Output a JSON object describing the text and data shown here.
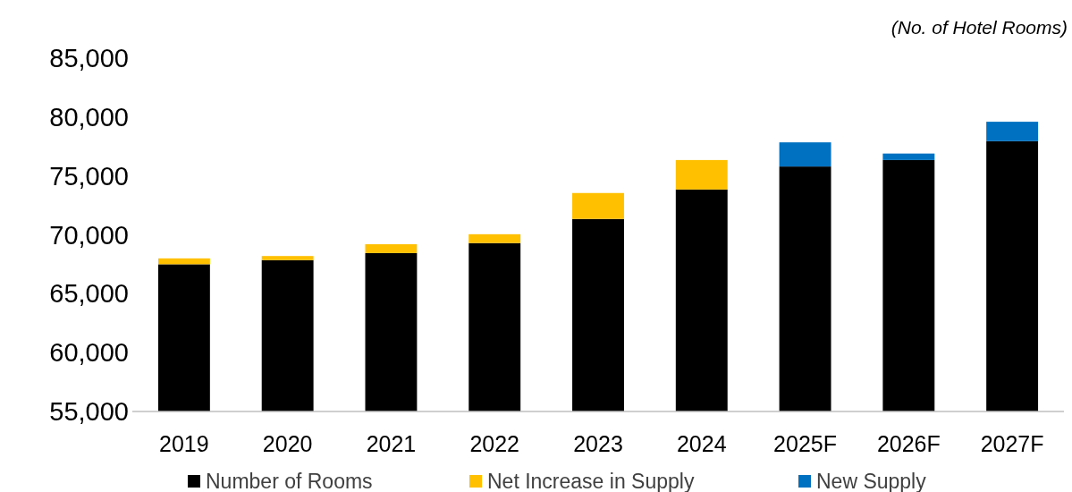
{
  "chart_data": {
    "type": "bar",
    "stacked": true,
    "categories": [
      "2019",
      "2020",
      "2021",
      "2022",
      "2023",
      "2024",
      "2025F",
      "2026F",
      "2027F"
    ],
    "series": [
      {
        "name": "Number of Rooms",
        "color": "#000000",
        "values": [
          67500,
          67850,
          68450,
          69300,
          71350,
          73850,
          75800,
          76350,
          77950
        ]
      },
      {
        "name": "Net Increase in Supply",
        "color": "#ffc000",
        "base": [
          67500,
          67850,
          68450,
          69300,
          71350,
          73850,
          null,
          null,
          null
        ],
        "values": [
          500,
          350,
          750,
          750,
          2200,
          2500,
          null,
          null,
          null
        ]
      },
      {
        "name": "New Supply",
        "color": "#0070c0",
        "base": [
          null,
          null,
          null,
          null,
          null,
          null,
          75800,
          76350,
          77950
        ],
        "values": [
          null,
          null,
          null,
          null,
          null,
          null,
          2050,
          550,
          1650
        ]
      }
    ],
    "ylim": [
      55000,
      85000
    ],
    "yticks": [
      {
        "value": 55000,
        "label": "55,000"
      },
      {
        "value": 60000,
        "label": "60,000"
      },
      {
        "value": 65000,
        "label": "65,000"
      },
      {
        "value": 70000,
        "label": "70,000"
      },
      {
        "value": 75000,
        "label": "75,000"
      },
      {
        "value": 80000,
        "label": "80,000"
      },
      {
        "value": 85000,
        "label": "85,000"
      }
    ],
    "annotations": [
      "(No. of Hotel Rooms)"
    ],
    "legend": "bottom"
  }
}
